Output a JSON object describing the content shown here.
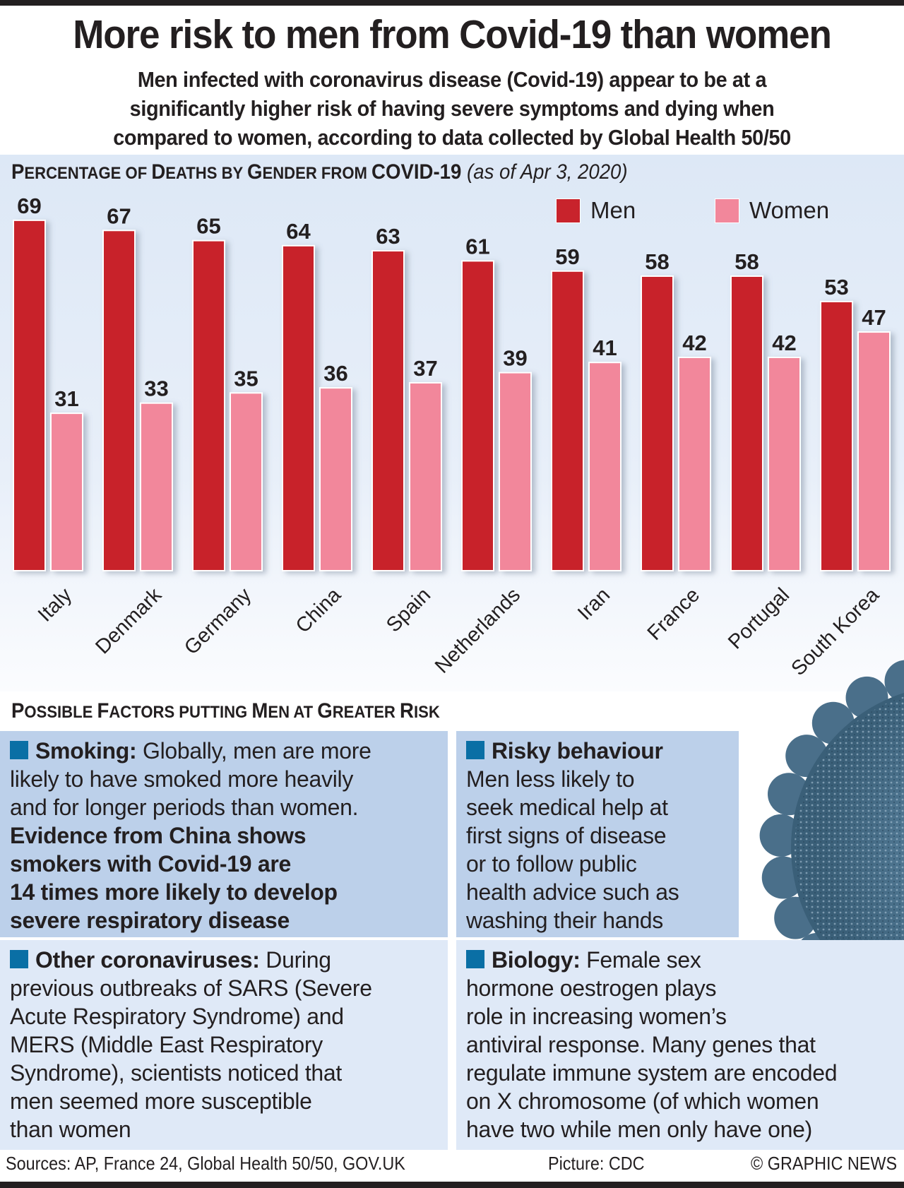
{
  "title": "More risk to men from Covid-19 than women",
  "subtitle_lines": [
    "Men infected with coronavirus disease (Covid-19) appear to be at a",
    "significantly higher risk of having severe symptoms and dying when",
    "compared to women, according to data collected by Global Health 50/50"
  ],
  "colors": {
    "men": "#c8232c",
    "women": "#f2879b",
    "bullet": "#0a6fa5",
    "panel_dark": "#bcd0ea",
    "panel_light": "#dfe9f7"
  },
  "chart_data": {
    "type": "bar",
    "title": "PERCENTAGE OF DEATHS BY GENDER FROM COVID-19",
    "title_parts": [
      {
        "big": "P",
        "small": "ERCENTAGE OF "
      },
      {
        "big": "D",
        "small": "EATHS BY "
      },
      {
        "big": "G",
        "small": "ENDER FROM "
      },
      {
        "big": "COVID-19",
        "small": ""
      }
    ],
    "subtitle": "(as of Apr 3, 2020)",
    "xlabel": "",
    "ylabel": "",
    "ylim": [
      0,
      100
    ],
    "grid": false,
    "legend_position": "top-right",
    "categories": [
      "Italy",
      "Denmark",
      "Germany",
      "China",
      "Spain",
      "Netherlands",
      "Iran",
      "France",
      "Portugal",
      "South Korea"
    ],
    "series": [
      {
        "name": "Men",
        "values": [
          69,
          67,
          65,
          64,
          63,
          61,
          59,
          58,
          58,
          53
        ]
      },
      {
        "name": "Women",
        "values": [
          31,
          33,
          35,
          36,
          37,
          39,
          41,
          42,
          42,
          47
        ]
      }
    ]
  },
  "factors": {
    "heading_parts": [
      {
        "big": "P",
        "small": "OSSIBLE "
      },
      {
        "big": "F",
        "small": "ACTORS PUTTING "
      },
      {
        "big": "M",
        "small": "EN AT "
      },
      {
        "big": "G",
        "small": "REATER "
      },
      {
        "big": "R",
        "small": "ISK"
      }
    ],
    "smoking": {
      "title": "Smoking:",
      "lines": [
        {
          "text": " Globally, men are more",
          "bold": false
        },
        {
          "text": "likely to have smoked more heavily",
          "bold": false
        },
        {
          "text": "and for longer periods than women.",
          "bold": false
        },
        {
          "text": "Evidence from China shows",
          "bold": true
        },
        {
          "text": "smokers with Covid-19 are",
          "bold": true
        },
        {
          "text": "14 times more likely to develop",
          "bold": true
        },
        {
          "text": "severe respiratory disease",
          "bold": true
        }
      ]
    },
    "risky": {
      "title": "Risky behaviour",
      "lines": [
        "Men less likely to",
        "seek medical help at",
        "first signs of disease",
        "or to follow public",
        "health advice such as",
        "washing their hands"
      ]
    },
    "other": {
      "title": "Other coronaviruses:",
      "first": " During",
      "lines": [
        "previous outbreaks of SARS (Severe",
        "Acute Respiratory Syndrome) and",
        "MERS (Middle East Respiratory",
        "Syndrome), scientists noticed that",
        "men seemed more susceptible",
        "than women"
      ]
    },
    "biology": {
      "title": "Biology:",
      "first": " Female sex",
      "lines": [
        "hormone oestrogen plays",
        "role in increasing women’s",
        "antiviral response. Many genes that",
        "regulate immune system are encoded",
        "on X chromosome (of which women",
        "have two while men only have one)"
      ]
    }
  },
  "footer": {
    "sources": "Sources: AP, France 24, Global Health 50/50, GOV.UK",
    "picture": "Picture: CDC",
    "credit": "© GRAPHIC NEWS"
  },
  "image": {
    "icon": "coronavirus-particle-image"
  }
}
